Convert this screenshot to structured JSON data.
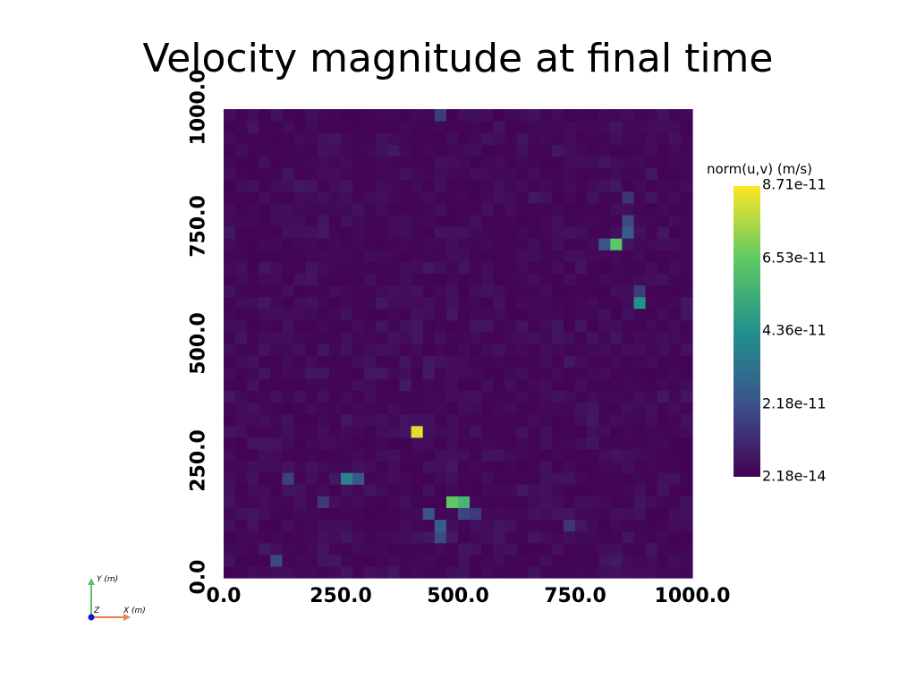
{
  "chart_data": {
    "type": "heatmap",
    "title": "Velocity magnitude at final time",
    "colorbar": {
      "title": "norm(u,v) (m/s)",
      "labels": [
        "8.71e-11",
        "6.53e-11",
        "4.36e-11",
        "2.18e-11",
        "2.18e-14"
      ],
      "min": 2.18e-14,
      "max": 8.71e-11,
      "colormap": [
        "#440154",
        "#3b528b",
        "#21918c",
        "#5ec962",
        "#fde725"
      ]
    },
    "x_ticks": [
      "0.0",
      "250.0",
      "500.0",
      "750.0",
      "1000.0"
    ],
    "y_ticks": [
      "0.0",
      "250.0",
      "500.0",
      "750.0",
      "1000.0"
    ],
    "xlim": [
      0,
      1000
    ],
    "ylim": [
      0,
      1000
    ],
    "grid_cells": 40,
    "background_value": 5e-12,
    "hotspots": [
      {
        "x": 412,
        "y": 312,
        "value": 8.3e-11
      },
      {
        "x": 488,
        "y": 162,
        "value": 6.5e-11
      },
      {
        "x": 512,
        "y": 162,
        "value": 5.8e-11
      },
      {
        "x": 838,
        "y": 712,
        "value": 6.4e-11
      },
      {
        "x": 888,
        "y": 588,
        "value": 4.4e-11
      },
      {
        "x": 262,
        "y": 212,
        "value": 3.8e-11
      },
      {
        "x": 288,
        "y": 212,
        "value": 2.4e-11
      },
      {
        "x": 438,
        "y": 138,
        "value": 2.2e-11
      },
      {
        "x": 462,
        "y": 112,
        "value": 2.6e-11
      },
      {
        "x": 462,
        "y": 88,
        "value": 2e-11
      },
      {
        "x": 812,
        "y": 712,
        "value": 2.3e-11
      },
      {
        "x": 862,
        "y": 738,
        "value": 2.5e-11
      },
      {
        "x": 862,
        "y": 762,
        "value": 1.9e-11
      },
      {
        "x": 112,
        "y": 38,
        "value": 1.9e-11
      },
      {
        "x": 138,
        "y": 212,
        "value": 1.7e-11
      },
      {
        "x": 462,
        "y": 988,
        "value": 1.6e-11
      },
      {
        "x": 512,
        "y": 138,
        "value": 1.8e-11
      },
      {
        "x": 538,
        "y": 138,
        "value": 1.5e-11
      },
      {
        "x": 738,
        "y": 112,
        "value": 1.4e-11
      },
      {
        "x": 212,
        "y": 162,
        "value": 1.5e-11
      },
      {
        "x": 862,
        "y": 812,
        "value": 1.4e-11
      },
      {
        "x": 888,
        "y": 612,
        "value": 1.6e-11
      }
    ]
  },
  "axes_widget": {
    "y_label": "Y (m)",
    "x_label": "X (m)",
    "z_label": "Z"
  }
}
